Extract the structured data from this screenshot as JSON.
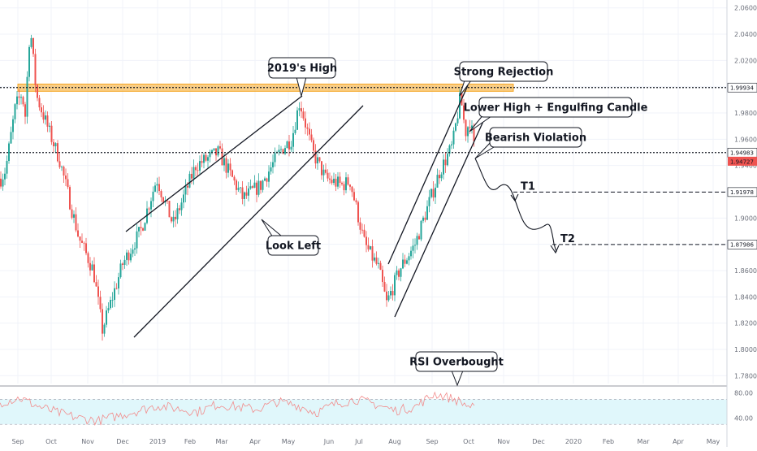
{
  "colors": {
    "candle_up": "#26a69a",
    "candle_down": "#ef5350",
    "resistance_zone": "#f5a623",
    "rsi_line": "#f28b8b",
    "rsi_band": "#e0f7fb",
    "trendline": "#131722",
    "current_price_tag": "#ef5350"
  },
  "chart_data": [
    {
      "type": "candlestick",
      "title": "",
      "x_ticks": [
        "Sep",
        "Oct",
        "Nov",
        "Dec",
        "2019",
        "Feb",
        "Mar",
        "Apr",
        "May",
        "Jun",
        "Jul",
        "Aug",
        "Sep",
        "Oct",
        "Nov",
        "Dec",
        "2020",
        "Feb",
        "Mar",
        "Apr",
        "May"
      ],
      "y_ticks": [
        "2.06000",
        "2.04000",
        "2.02000",
        "2.00000",
        "1.98000",
        "1.96000",
        "1.94000",
        "1.92000",
        "1.90000",
        "1.88000",
        "1.86000",
        "1.84000",
        "1.82000",
        "1.80000",
        "1.78000"
      ],
      "ylim": [
        1.774,
        2.066
      ],
      "grid": true,
      "key_points": {
        "start_close": 1.93,
        "aug_high": 2.047,
        "dec_low": 1.815,
        "may_high": 1.989,
        "aug_low": 1.835,
        "sep_high": 1.993,
        "last_close": 1.9473
      },
      "price_levels": [
        {
          "value": "1.99934",
          "style": "dotted"
        },
        {
          "value": "1.94983",
          "style": "dotted"
        },
        {
          "value": "1.91978",
          "style": "dashed"
        },
        {
          "value": "1.87986",
          "style": "dashed"
        }
      ],
      "current_price": "1.94727",
      "resistance_zone": [
        1.9965,
        2.002
      ],
      "annotations": [
        {
          "text": "2019's High",
          "points_to": "May high"
        },
        {
          "text": "Strong Rejection",
          "points_to": "Sep high"
        },
        {
          "text": "Lower High + Engulfing Candle",
          "points_to": "late Sep"
        },
        {
          "text": "Bearish Violation",
          "points_to": "Oct break"
        },
        {
          "text": "Look Left",
          "points_to": "Apr consolidation"
        },
        {
          "text": "T1",
          "points_to": "1.91978"
        },
        {
          "text": "T2",
          "points_to": "1.87986"
        }
      ]
    },
    {
      "type": "line",
      "title": "",
      "series": [
        {
          "name": "",
          "values": [
            65,
            72,
            58,
            48,
            40,
            36,
            44,
            52,
            60,
            55,
            50,
            62,
            58,
            54,
            66,
            61,
            49,
            63,
            70,
            62,
            52,
            58,
            79,
            70,
            55
          ]
        }
      ],
      "y_ticks": [
        "80.00",
        "40.00"
      ],
      "ylim": [
        20,
        90
      ],
      "band": [
        30,
        70
      ],
      "annotations": [
        {
          "text": "RSI Overbought"
        }
      ]
    }
  ]
}
